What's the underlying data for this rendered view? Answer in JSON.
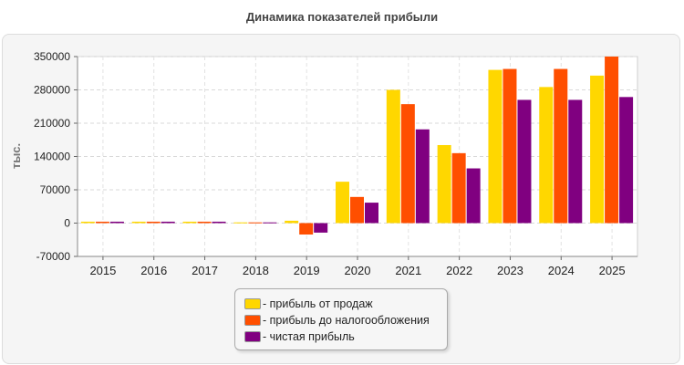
{
  "chart_data": {
    "type": "bar",
    "title": "Динамика показателей прибыли",
    "ylabel": "тыс.",
    "xlabel": "",
    "categories": [
      "2015",
      "2016",
      "2017",
      "2018",
      "2019",
      "2020",
      "2021",
      "2022",
      "2023",
      "2024",
      "2025"
    ],
    "ylim": [
      -70000,
      350000
    ],
    "yticks": [
      "350000",
      "280000",
      "210000",
      "140000",
      "70000",
      "0",
      "-70000"
    ],
    "ytick_values": [
      350000,
      280000,
      210000,
      140000,
      70000,
      0,
      -70000
    ],
    "grid": true,
    "legend_position": "bottom-center",
    "series": [
      {
        "name": "- прибыль от продаж",
        "color": "#FFD700",
        "values": [
          3000,
          3000,
          3000,
          1500,
          5000,
          87000,
          280000,
          164000,
          322000,
          286000,
          310000
        ]
      },
      {
        "name": "- прибыль до налогообложения",
        "color": "#FF4F00",
        "values": [
          3000,
          3000,
          3000,
          1500,
          -24000,
          55000,
          250000,
          147000,
          324000,
          324000,
          350000
        ]
      },
      {
        "name": "- чистая прибыль",
        "color": "#800080",
        "values": [
          3000,
          3000,
          3000,
          1500,
          -20000,
          43000,
          197000,
          115000,
          259000,
          259000,
          265000
        ]
      }
    ]
  }
}
